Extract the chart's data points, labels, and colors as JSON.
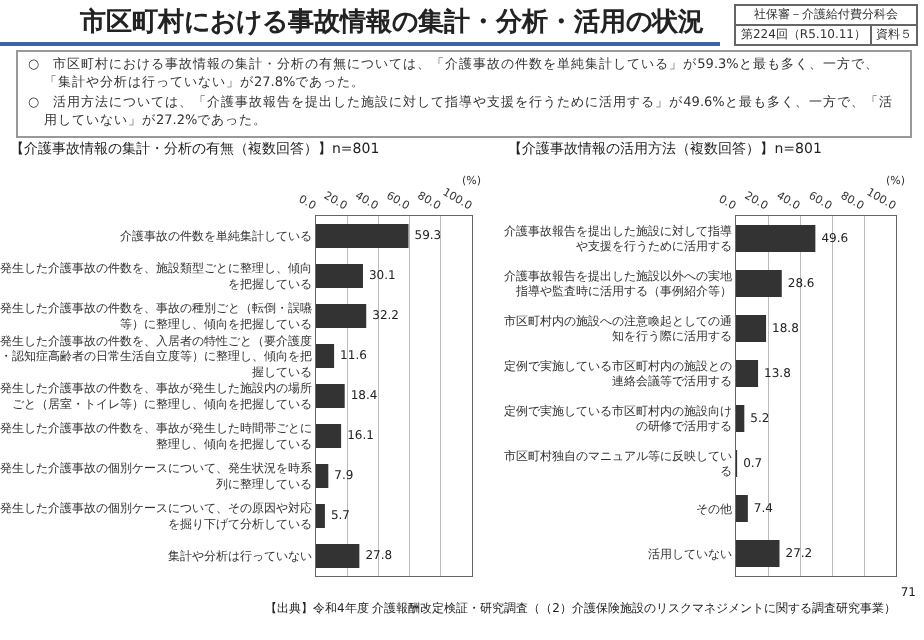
{
  "chart_data": [
    {
      "type": "other",
      "title": "市区町村における事故情報の集計・分析・活用の状況",
      "annotations": [
        "社保審－介護給付費分科会",
        "第224回（R5.10.11）",
        "資料５",
        "○　市区町村における事故情報の集計・分析の有無については、「介護事故の件数を単純集計している」が59.3%と最も多く、一方で、「集計や分析は行っていない」が27.8%であった。",
        "○　活用方法については、「介護事故報告を提出した施設に対して指導や支援を行うために活用する」が49.6%と最も多く、一方で、「活用していない」が27.2%であった。",
        "【出典】令和4年度 介護報酬改定検証・研究調査（（2）介護保険施設のリスクマネジメントに関する調査研究事業）",
        "71"
      ]
    },
    {
      "type": "bar",
      "orientation": "horizontal",
      "title": "【介護事故情報の集計・分析の有無（複数回答）】n=801",
      "xlabel": "(%)",
      "categories": [
        "介護事故の件数を単純集計している",
        "発生した介護事故の件数を、施設類型ごとに整理し、傾向を把握している",
        "発生した介護事故の件数を、事故の種別ごと（転倒・誤嚥等）に整理し、傾向を把握している",
        "発生した介護事故の件数を、入居者の特性ごと（要介護度・認知症高齢者の日常生活自立度等）に整理し、傾向を把握している",
        "発生した介護事故の件数を、事故が発生した施設内の場所ごと（居室・トイレ等）に整理し、傾向を把握している",
        "発生した介護事故の件数を、事故が発生した時間帯ごとに整理し、傾向を把握している",
        "発生した介護事故の個別ケースについて、発生状況を時系列に整理している",
        "発生した介護事故の個別ケースについて、その原因や対応を掘り下げて分析している",
        "集計や分析は行っていない"
      ],
      "values": [
        59.3,
        30.1,
        32.2,
        11.6,
        18.4,
        16.1,
        7.9,
        5.7,
        27.8
      ],
      "color": "#333333",
      "xlim": [
        0,
        100
      ],
      "xticks": [
        {
          "value": 0,
          "label": "0.0"
        },
        {
          "value": 20,
          "label": "20.0"
        },
        {
          "value": 40,
          "label": "40.0"
        },
        {
          "value": 60,
          "label": "60.0"
        },
        {
          "value": 80,
          "label": "80.0"
        },
        {
          "value": 100,
          "label": "100.0"
        }
      ],
      "grid": "x",
      "data_labels": true
    },
    {
      "type": "bar",
      "orientation": "horizontal",
      "title": "【介護事故情報の活用方法（複数回答）】n=801",
      "xlabel": "(%)",
      "categories": [
        "介護事故報告を提出した施設に対して指導や支援を行うために活用する",
        "介護事故報告を提出した施設以外への実地指導や監査時に活用する（事例紹介等）",
        "市区町村内の施設への注意喚起としての通知を行う際に活用する",
        "定例で実施している市区町村内の施設との連絡会議等で活用する",
        "定例で実施している市区町村内の施設向けの研修で活用する",
        "市区町村独自のマニュアル等に反映している",
        "その他",
        "活用していない"
      ],
      "values": [
        49.6,
        28.6,
        18.8,
        13.8,
        5.2,
        0.7,
        7.4,
        27.2
      ],
      "color": "#333333",
      "xlim": [
        0,
        100
      ],
      "xticks": [
        {
          "value": 0,
          "label": "0.0"
        },
        {
          "value": 20,
          "label": "20.0"
        },
        {
          "value": 40,
          "label": "40.0"
        },
        {
          "value": 60,
          "label": "60.0"
        },
        {
          "value": 80,
          "label": "80.0"
        },
        {
          "value": 100,
          "label": "100.0"
        }
      ],
      "grid": "x",
      "data_labels": true
    }
  ]
}
